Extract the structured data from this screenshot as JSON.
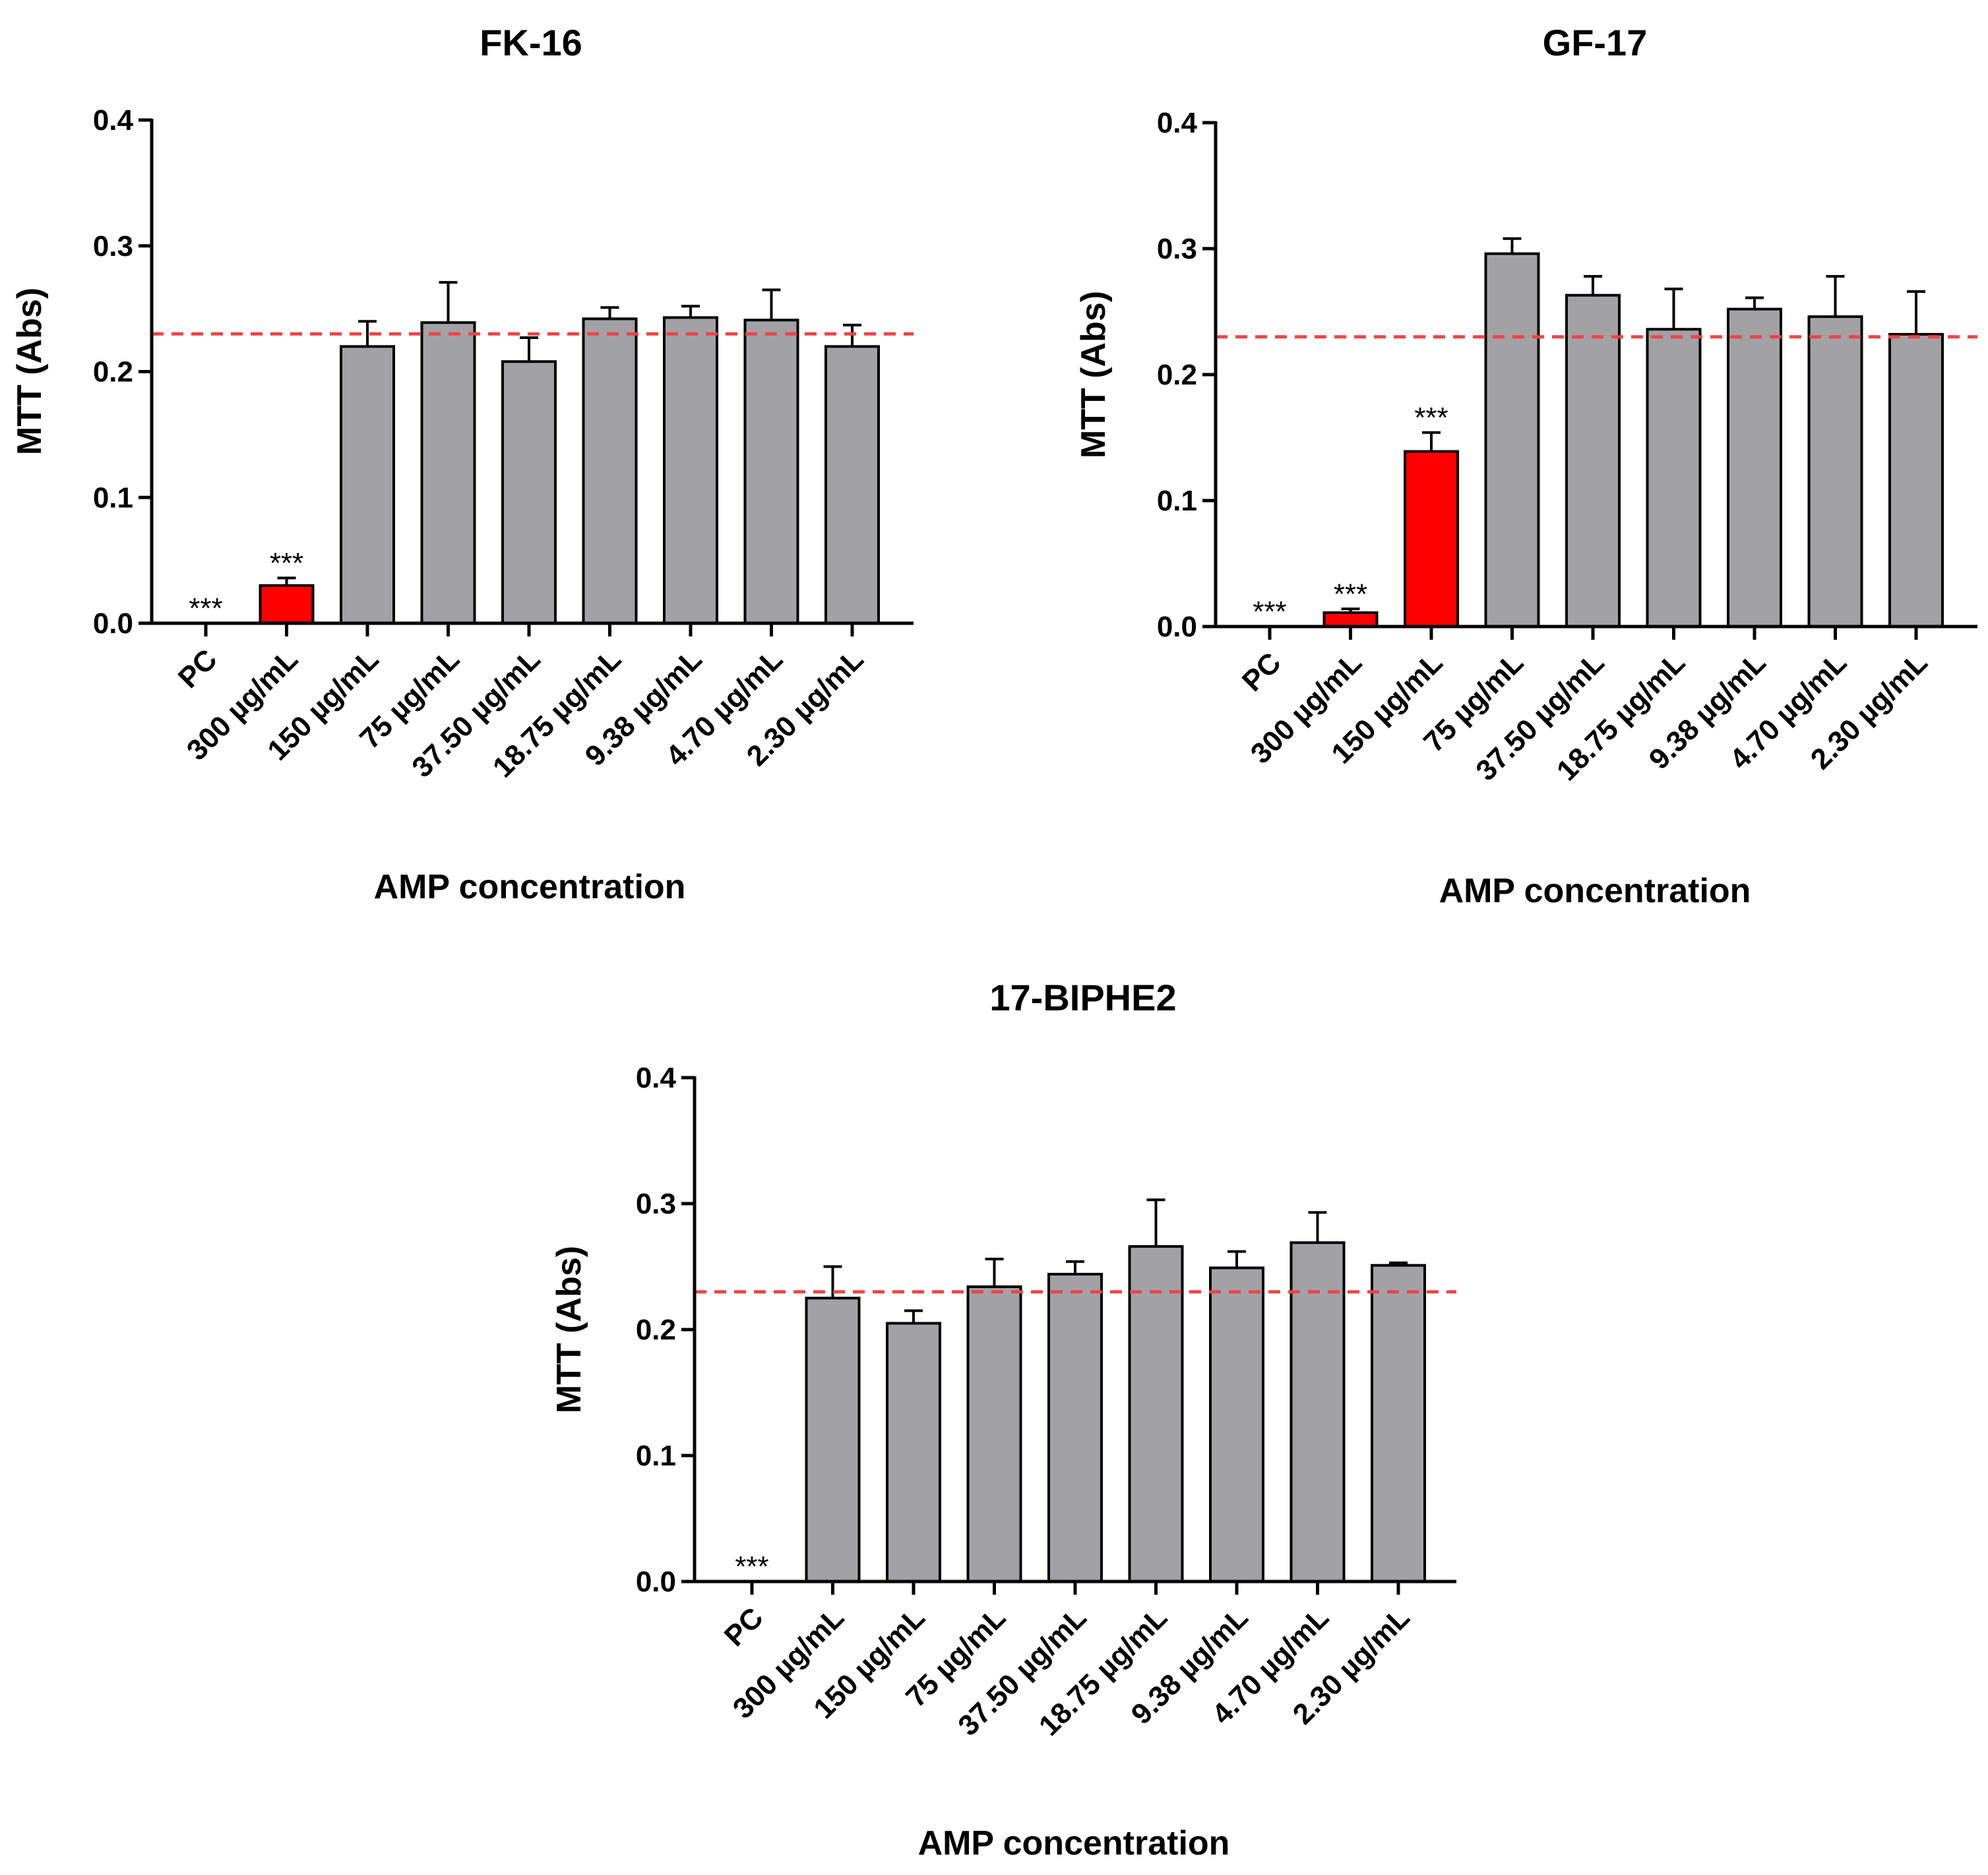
{
  "chart_data": [
    {
      "type": "bar",
      "title": "FK-16",
      "xlabel": "AMP concentration",
      "ylabel": "MTT (Abs)",
      "ylim": [
        0,
        0.4
      ],
      "yticks": [
        "0.0",
        "0.1",
        "0.2",
        "0.3",
        "0.4"
      ],
      "reference_line": 0.23,
      "categories": [
        "PC",
        "300 µg/mL",
        "150 µg/mL",
        "75 µg/mL",
        "37.50 µg/mL",
        "18.75 µg/mL",
        "9.38 µg/mL",
        "4.70 µg/mL",
        "2.30 µg/mL"
      ],
      "values": [
        0,
        0.03,
        0.22,
        0.239,
        0.208,
        0.242,
        0.243,
        0.241,
        0.22
      ],
      "errors": [
        0,
        0.006,
        0.02,
        0.032,
        0.019,
        0.009,
        0.009,
        0.024,
        0.017
      ],
      "highlight": [
        false,
        true,
        false,
        false,
        false,
        false,
        false,
        false,
        false
      ],
      "significance": [
        "***",
        "***",
        "",
        "",
        "",
        "",
        "",
        "",
        ""
      ]
    },
    {
      "type": "bar",
      "title": "GF-17",
      "xlabel": "AMP concentration",
      "ylabel": "MTT (Abs)",
      "ylim": [
        0,
        0.4
      ],
      "yticks": [
        "0.0",
        "0.1",
        "0.2",
        "0.3",
        "0.4"
      ],
      "reference_line": 0.23,
      "categories": [
        "PC",
        "300 µg/mL",
        "150 µg/mL",
        "75 µg/mL",
        "37.50 µg/mL",
        "18.75 µg/mL",
        "9.38 µg/mL",
        "4.70 µg/mL",
        "2.30 µg/mL"
      ],
      "values": [
        0,
        0.011,
        0.139,
        0.296,
        0.263,
        0.236,
        0.252,
        0.246,
        0.232
      ],
      "errors": [
        0,
        0.003,
        0.015,
        0.012,
        0.015,
        0.032,
        0.009,
        0.032,
        0.034
      ],
      "highlight": [
        false,
        true,
        true,
        false,
        false,
        false,
        false,
        false,
        false
      ],
      "significance": [
        "***",
        "***",
        "***",
        "",
        "",
        "",
        "",
        "",
        ""
      ]
    },
    {
      "type": "bar",
      "title": "17-BIPHE2",
      "xlabel": "AMP concentration",
      "ylabel": "MTT (Abs)",
      "ylim": [
        0,
        0.4
      ],
      "yticks": [
        "0.0",
        "0.1",
        "0.2",
        "0.3",
        "0.4"
      ],
      "reference_line": 0.23,
      "categories": [
        "PC",
        "300 µg/mL",
        "150 µg/mL",
        "75 µg/mL",
        "37.50 µg/mL",
        "18.75 µg/mL",
        "9.38 µg/mL",
        "4.70 µg/mL",
        "2.30 µg/mL"
      ],
      "values": [
        0,
        0.225,
        0.205,
        0.234,
        0.244,
        0.266,
        0.249,
        0.269,
        0.251
      ],
      "errors": [
        0,
        0.025,
        0.01,
        0.022,
        0.01,
        0.037,
        0.013,
        0.024,
        0.002
      ],
      "highlight": [
        false,
        false,
        false,
        false,
        false,
        false,
        false,
        false,
        false
      ],
      "significance": [
        "***",
        "",
        "",
        "",
        "",
        "",
        "",
        "",
        ""
      ]
    }
  ],
  "colors": {
    "bar": "#a2a2a6",
    "highlight": "#ff0000",
    "reference_line": "#ee4444",
    "axis": "#000000"
  }
}
